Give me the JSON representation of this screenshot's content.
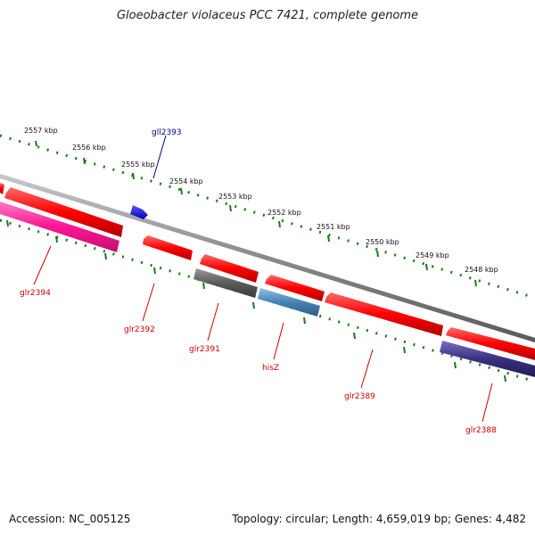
{
  "title": "Gloeobacter violaceus PCC 7421, complete genome",
  "footer": {
    "accession": "Accession: NC_005125",
    "topology": "Topology: circular; Length: 4,659,019 bp; Genes: 4,482"
  },
  "colors": {
    "backbone": "#8a8a8a",
    "ruler_ticks": "#1a7a1a",
    "forward_label": "#00008b",
    "reverse_label": "#cc0000"
  },
  "kbp_ticks": [
    "2557 kbp",
    "2556 kbp",
    "2555 kbp",
    "2554 kbp",
    "2553 kbp",
    "2552 kbp",
    "2551 kbp",
    "2550 kbp",
    "2549 kbp",
    "2548 kbp"
  ],
  "genes": [
    {
      "id": "glr2394",
      "label": "glr2394",
      "strand": "reverse",
      "color": "#ff1493"
    },
    {
      "id": "gll2393",
      "label": "gll2393",
      "strand": "forward",
      "color": "#0000ee"
    },
    {
      "id": "glr2392",
      "label": "glr2392",
      "strand": "reverse",
      "color": "#ff0000"
    },
    {
      "id": "glr2391",
      "label": "glr2391",
      "strand": "reverse",
      "color": "#555555"
    },
    {
      "id": "hisZ",
      "label": "hisZ",
      "strand": "reverse",
      "color": "#4682b4"
    },
    {
      "id": "glr2389",
      "label": "glr2389",
      "strand": "reverse",
      "color": "#ff0000"
    },
    {
      "id": "glr2388",
      "label": "glr2388",
      "strand": "reverse",
      "color": "#3a2f80"
    }
  ]
}
